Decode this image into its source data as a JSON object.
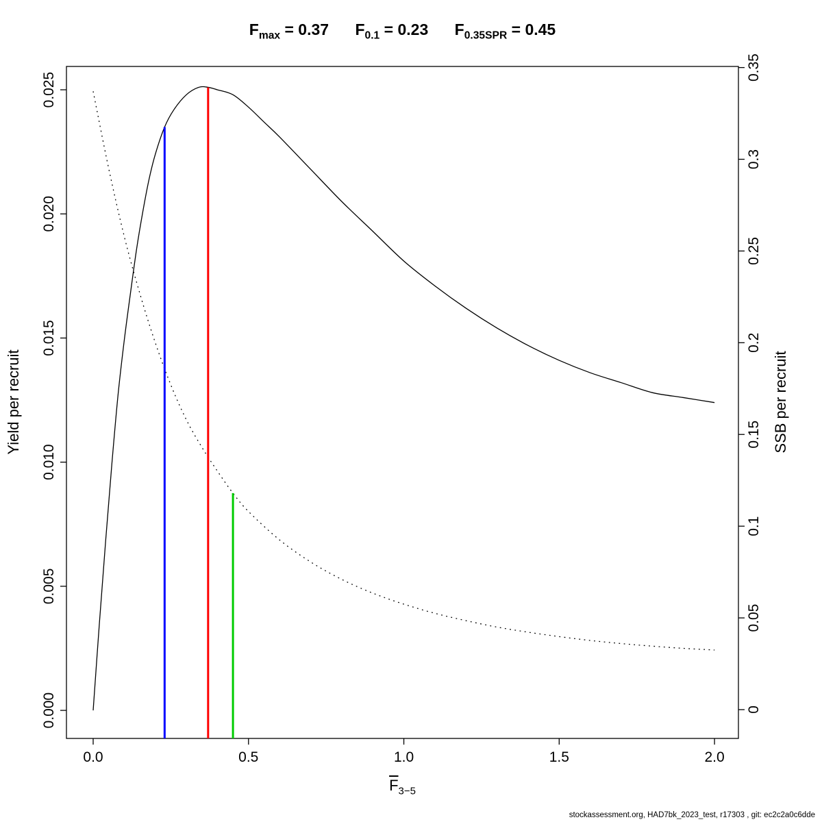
{
  "title": {
    "parts": [
      {
        "base": "F",
        "sub": "max",
        "rest": " = 0.37"
      },
      {
        "base": "F",
        "sub": "0.1",
        "rest": " = 0.23"
      },
      {
        "base": "F",
        "sub": "0.35SPR",
        "rest": " = 0.45"
      }
    ]
  },
  "caption": "stockassessment.org, HAD7bk_2023_test, r17303 , git: ec2c2a0c6dde",
  "chart_data": {
    "type": "line",
    "title": "Fmax = 0.37    F0.1 = 0.23    F0.35SPR = 0.45",
    "xlabel": "F̄3−5",
    "xlabel_base": "F",
    "xlabel_sub": "3−5",
    "ylabel_left": "Yield per recruit",
    "ylabel_right": "SSB per recruit",
    "x_ticks": [
      0.0,
      0.5,
      1.0,
      1.5,
      2.0
    ],
    "x_tick_labels": [
      "0.0",
      "0.5",
      "1.0",
      "1.5",
      "2.0"
    ],
    "y_left_ticks": [
      0.0,
      0.005,
      0.01,
      0.015,
      0.02,
      0.025
    ],
    "y_left_tick_labels": [
      "0.000",
      "0.005",
      "0.010",
      "0.015",
      "0.020",
      "0.025"
    ],
    "y_right_ticks": [
      0,
      0.05,
      0.1,
      0.15,
      0.2,
      0.25,
      0.3,
      0.35
    ],
    "y_right_tick_labels": [
      "0",
      "0.05",
      "0.1",
      "0.15",
      "0.2",
      "0.25",
      "0.3",
      "0.35"
    ],
    "x_range": [
      -0.086,
      2.077
    ],
    "y_left_range": [
      -0.00113,
      0.02594
    ],
    "y_right_range": [
      -0.0157,
      0.3506
    ],
    "grid": false,
    "legend": false,
    "reference_points": {
      "fmax": 0.37,
      "f01": 0.23,
      "f035spr": 0.45
    },
    "series": [
      {
        "name": "Yield per recruit",
        "axis": "left",
        "style": "solid",
        "color": "#000000",
        "x": [
          0,
          0.02,
          0.04,
          0.06,
          0.08,
          0.1,
          0.12,
          0.14,
          0.16,
          0.18,
          0.2,
          0.23,
          0.26,
          0.3,
          0.34,
          0.37,
          0.4,
          0.45,
          0.5,
          0.55,
          0.6,
          0.7,
          0.8,
          0.9,
          1.0,
          1.1,
          1.2,
          1.3,
          1.4,
          1.5,
          1.6,
          1.7,
          1.8,
          1.9,
          2.0
        ],
        "y": [
          0,
          0.0035,
          0.0068,
          0.0099,
          0.0127,
          0.0149,
          0.0168,
          0.0186,
          0.0201,
          0.0214,
          0.0224,
          0.0235,
          0.0242,
          0.0248,
          0.0251,
          0.0251,
          0.025,
          0.0248,
          0.0243,
          0.0237,
          0.0231,
          0.0218,
          0.0205,
          0.0193,
          0.0181,
          0.0171,
          0.0162,
          0.0154,
          0.0147,
          0.0141,
          0.0136,
          0.0132,
          0.0128,
          0.0126,
          0.0124
        ]
      },
      {
        "name": "SSB per recruit",
        "axis": "right",
        "style": "dotted",
        "color": "#000000",
        "x": [
          0,
          0.05,
          0.1,
          0.15,
          0.2,
          0.25,
          0.3,
          0.35,
          0.4,
          0.45,
          0.5,
          0.6,
          0.7,
          0.8,
          0.9,
          1.0,
          1.1,
          1.2,
          1.3,
          1.4,
          1.5,
          1.6,
          1.7,
          1.8,
          1.9,
          2.0
        ],
        "y": [
          0.337,
          0.295,
          0.258,
          0.227,
          0.2,
          0.177,
          0.158,
          0.143,
          0.13,
          0.118,
          0.108,
          0.0925,
          0.0805,
          0.071,
          0.0635,
          0.0575,
          0.0525,
          0.0485,
          0.045,
          0.0422,
          0.0398,
          0.0377,
          0.036,
          0.0346,
          0.0334,
          0.0325
        ]
      }
    ],
    "vlines": [
      {
        "name": "f01",
        "label": "F0.1",
        "x": 0.23,
        "axis": "left",
        "y_top": 0.0235,
        "color": "#0000ff"
      },
      {
        "name": "fmax",
        "label": "Fmax",
        "x": 0.37,
        "axis": "left",
        "y_top": 0.0251,
        "color": "#ff0000"
      },
      {
        "name": "f035spr",
        "label": "F0.35SPR",
        "x": 0.45,
        "axis": "right",
        "y_top": 0.118,
        "color": "#00cc00"
      }
    ]
  }
}
